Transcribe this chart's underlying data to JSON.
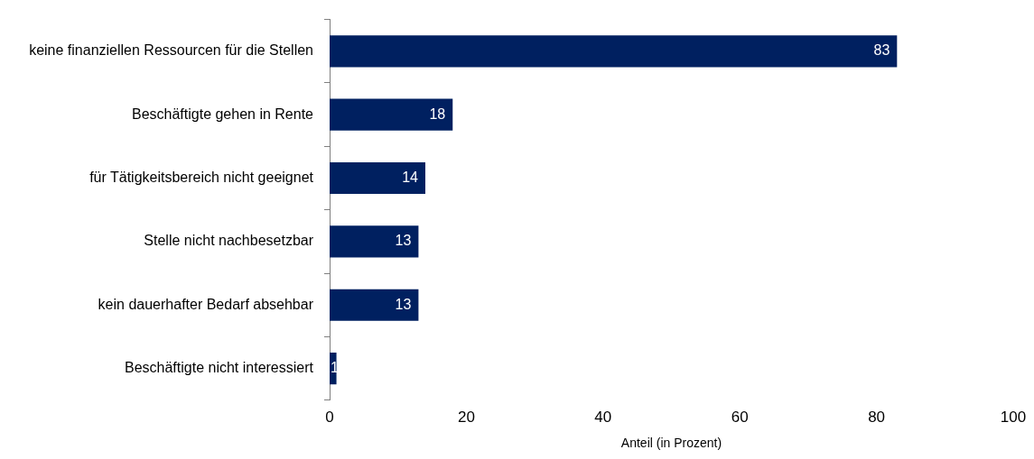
{
  "chart_data": {
    "type": "bar",
    "orientation": "horizontal",
    "xlabel": "Anteil (in Prozent)",
    "categories": [
      "keine finanziellen Ressourcen für die Stellen",
      "Beschäftigte gehen in Rente",
      "für Tätigkeitsbereich nicht geeignet",
      "Stelle nicht nachbesetzbar",
      "kein dauerhafter Bedarf absehbar",
      "Beschäftigte nicht interessiert"
    ],
    "values": [
      83,
      18,
      14,
      13,
      13,
      1
    ],
    "color": "#002060",
    "xlim": [
      0,
      100
    ],
    "xticks": [
      0,
      20,
      40,
      60,
      80,
      100
    ],
    "grid": false,
    "legend": false,
    "data_labels": true
  }
}
